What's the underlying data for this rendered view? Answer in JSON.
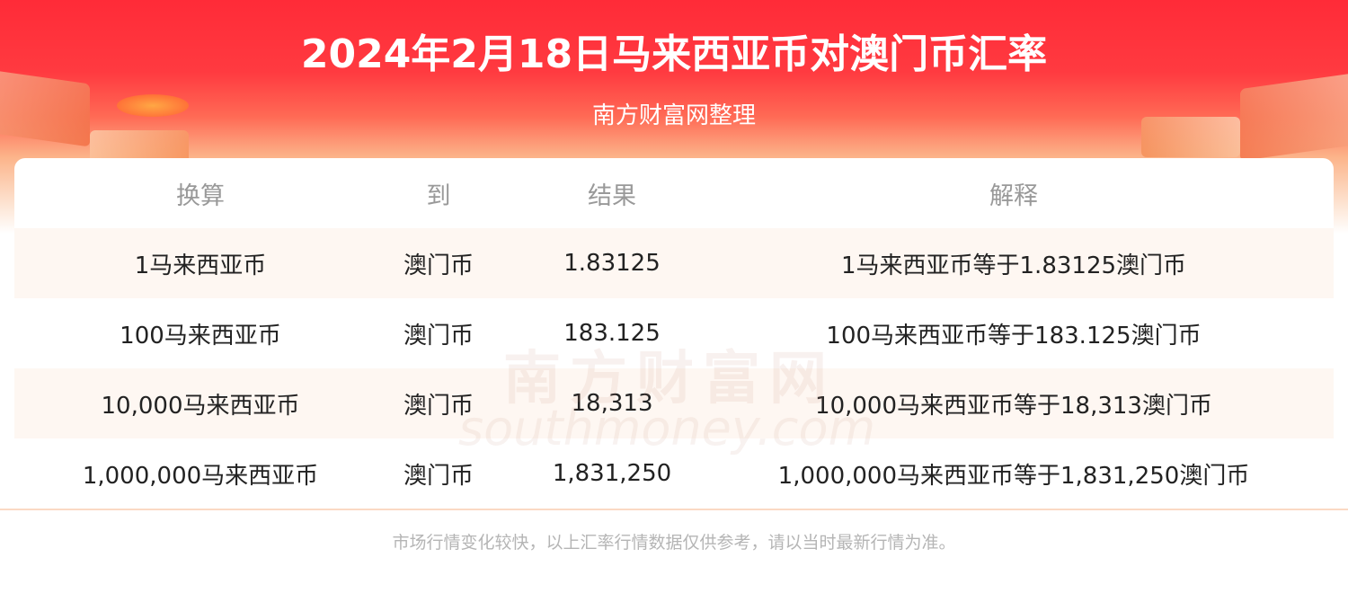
{
  "header": {
    "title": "2024年2月18日马来西亚币对澳门币汇率",
    "subtitle": "南方财富网整理"
  },
  "colors": {
    "brand_red": "#ff2b38",
    "row_stripe": "#fef7f2",
    "divider": "#fbd9c4"
  },
  "table": {
    "columns": [
      "换算",
      "到",
      "结果",
      "解释"
    ],
    "rows": [
      [
        "1马来西亚币",
        "澳门币",
        "1.83125",
        "1马来西亚币等于1.83125澳门币"
      ],
      [
        "100马来西亚币",
        "澳门币",
        "183.125",
        "100马来西亚币等于183.125澳门币"
      ],
      [
        "10,000马来西亚币",
        "澳门币",
        "18,313",
        "10,000马来西亚币等于18,313澳门币"
      ],
      [
        "1,000,000马来西亚币",
        "澳门币",
        "1,831,250",
        "1,000,000马来西亚币等于1,831,250澳门币"
      ]
    ]
  },
  "watermark": {
    "cn": "南方财富网",
    "en": "southmoney.com"
  },
  "footer": {
    "note": "市场行情变化较快，以上汇率行情数据仅供参考，请以当时最新行情为准。"
  }
}
